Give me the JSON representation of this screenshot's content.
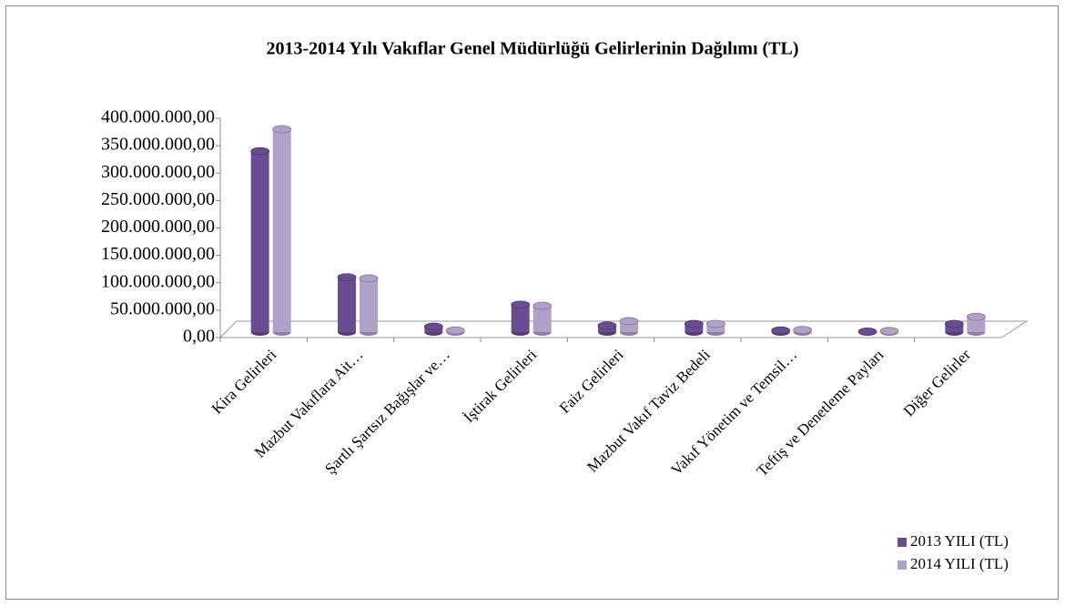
{
  "chart_data": {
    "type": "bar",
    "title": "2013-2014 Yılı Vakıflar Genel Müdürlüğü Gelirlerinin Dağılımı (TL)",
    "categories": [
      "Kira Gelirleri",
      "Mazbut Vakıflara Ait…",
      "Şartlı Şartsız Bağışlar ve…",
      "İştirak Gelirleri",
      "Faiz Gelirleri",
      "Mazbut Vakıf Taviz Bedeli",
      "Vakıf Yönetim ve Temsil…",
      "Teftiş ve Denetleme Payları",
      "Diğer Gelirler"
    ],
    "series": [
      {
        "name": "2013 YILI (TL)",
        "color": "#6a4c93",
        "values": [
          330000000,
          100000000,
          10000000,
          50000000,
          12000000,
          15000000,
          3000000,
          1000000,
          15000000
        ]
      },
      {
        "name": "2014 YILI (TL)",
        "color": "#b1a0c8",
        "values": [
          370000000,
          98000000,
          3000000,
          48000000,
          20000000,
          15000000,
          4000000,
          2000000,
          28000000
        ]
      }
    ],
    "ylim": [
      0,
      400000000
    ],
    "yticks": [
      {
        "value": 0,
        "label": "0,00"
      },
      {
        "value": 50000000,
        "label": "50.000.000,00"
      },
      {
        "value": 100000000,
        "label": "100.000.000,00"
      },
      {
        "value": 150000000,
        "label": "150.000.000,00"
      },
      {
        "value": 200000000,
        "label": "200.000.000,00"
      },
      {
        "value": 250000000,
        "label": "250.000.000,00"
      },
      {
        "value": 300000000,
        "label": "300.000.000,00"
      },
      {
        "value": 350000000,
        "label": "350.000.000,00"
      },
      {
        "value": 400000000,
        "label": "400.000.000,00"
      }
    ],
    "legend": "bottom-right"
  }
}
